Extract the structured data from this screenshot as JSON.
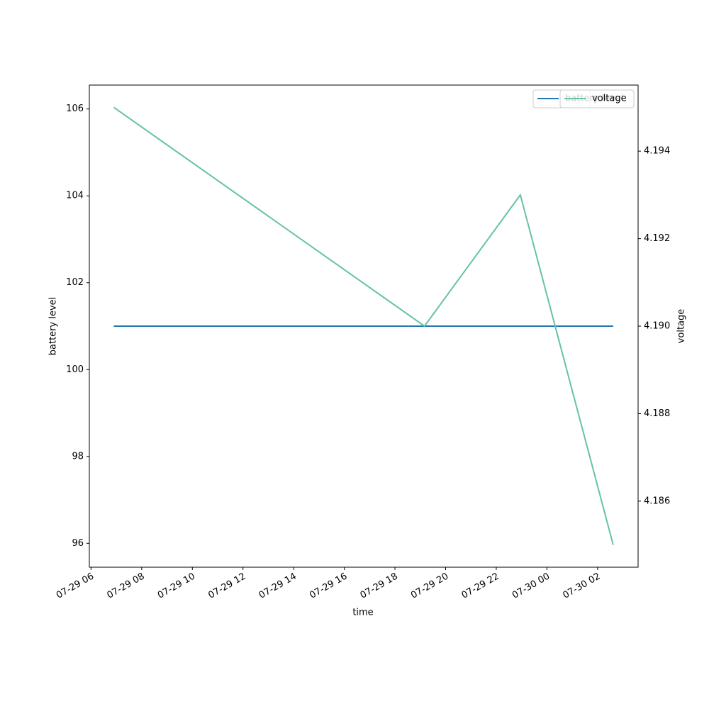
{
  "chart_data": {
    "type": "line",
    "xlabel": "time",
    "ylabel": "battery level",
    "y2label": "voltage",
    "x": [
      "07-29 06:54",
      "07-29 19:10",
      "07-29 22:57",
      "07-30 02:37"
    ],
    "xlim": [
      "07-29 05:56",
      "07-30 03:36"
    ],
    "xticks": [
      "07-29 06",
      "07-29 08",
      "07-29 10",
      "07-29 12",
      "07-29 14",
      "07-29 16",
      "07-29 18",
      "07-29 20",
      "07-29 22",
      "07-30 00",
      "07-30 02"
    ],
    "ylim": [
      95.45,
      106.55
    ],
    "yticks": [
      96,
      98,
      100,
      102,
      104,
      106
    ],
    "y2lim": [
      4.18449,
      4.19551
    ],
    "y2ticks": [
      4.186,
      4.188,
      {
        "value": 4.19,
        "label": "4.190"
      },
      4.192,
      4.194
    ],
    "series": [
      {
        "name": "battery level",
        "color": "#1f77b4",
        "values": [
          101,
          101,
          101,
          101
        ]
      },
      {
        "name": "voltage",
        "color": "#66c2a5",
        "axis": "y2",
        "values": [
          4.195,
          4.19,
          4.193,
          4.185
        ]
      }
    ],
    "legend": "upper right"
  }
}
